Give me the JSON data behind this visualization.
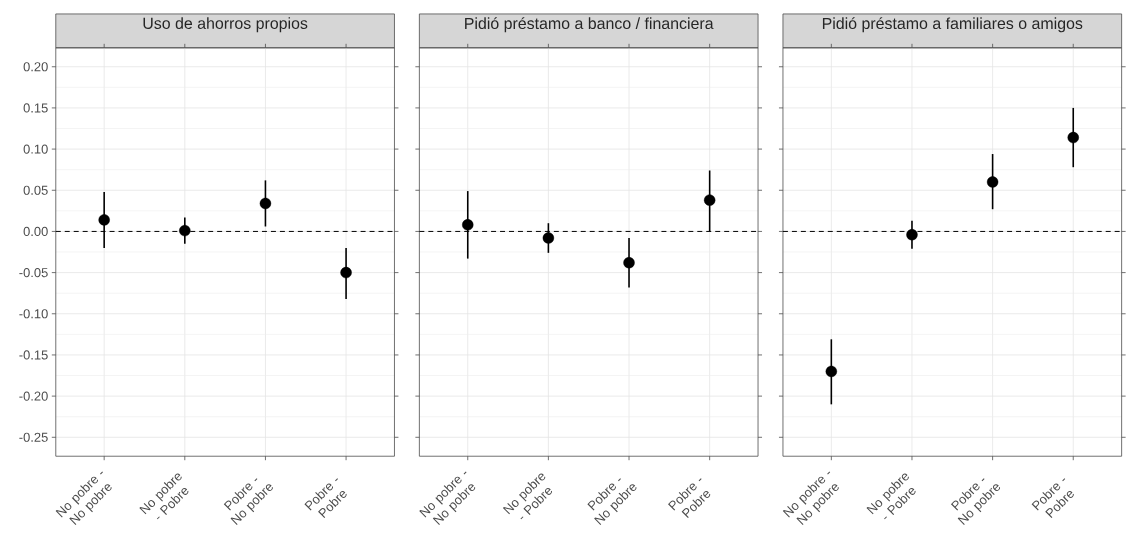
{
  "chart_data": [
    {
      "type": "scatter",
      "title": "Uso de ahorros propios",
      "categories": [
        "No pobre - No pobre",
        "No pobre - Pobre",
        "Pobre - No pobre",
        "Pobre - Pobre"
      ],
      "values": [
        0.014,
        0.001,
        0.034,
        -0.05
      ],
      "errors": [
        [
          -0.02,
          0.048
        ],
        [
          -0.015,
          0.017
        ],
        [
          0.006,
          0.062
        ],
        [
          -0.082,
          -0.02
        ]
      ],
      "color": "#000000",
      "marker": "circle",
      "ylim": [
        -0.273,
        0.223
      ],
      "yticks": [
        {
          "value": -0.25,
          "label": "-0.25"
        },
        {
          "value": -0.2,
          "label": "-0.20"
        },
        {
          "value": -0.15,
          "label": "-0.15"
        },
        {
          "value": -0.1,
          "label": "-0.10"
        },
        {
          "value": -0.05,
          "label": "-0.05"
        },
        {
          "value": 0,
          "label": "0.00"
        },
        {
          "value": 0.05,
          "label": "0.05"
        },
        {
          "value": 0.1,
          "label": "0.10"
        },
        {
          "value": 0.15,
          "label": "0.15"
        },
        {
          "value": 0.2,
          "label": "0.20"
        }
      ],
      "grid": true,
      "ref_lines": [
        {
          "axis": "y",
          "value": 0,
          "line_style": "dashed",
          "color": "#000000"
        }
      ]
    },
    {
      "type": "scatter",
      "title": "Pidió préstamo a banco / financiera",
      "categories": [
        "No pobre - No pobre",
        "No pobre - Pobre",
        "Pobre - No pobre",
        "Pobre - Pobre"
      ],
      "values": [
        0.008,
        -0.008,
        -0.038,
        0.038
      ],
      "errors": [
        [
          -0.033,
          0.049
        ],
        [
          -0.026,
          0.01
        ],
        [
          -0.068,
          -0.008
        ],
        [
          0.0,
          0.074
        ]
      ],
      "color": "#000000",
      "marker": "circle",
      "ylim": [
        -0.273,
        0.223
      ],
      "yticks": [
        {
          "value": -0.25,
          "label": null
        },
        {
          "value": -0.2,
          "label": null
        },
        {
          "value": -0.15,
          "label": null
        },
        {
          "value": -0.1,
          "label": null
        },
        {
          "value": -0.05,
          "label": null
        },
        {
          "value": 0,
          "label": null
        },
        {
          "value": 0.05,
          "label": null
        },
        {
          "value": 0.1,
          "label": null
        },
        {
          "value": 0.15,
          "label": null
        },
        {
          "value": 0.2,
          "label": null
        }
      ],
      "tick_labels": "x",
      "grid": true,
      "ref_lines": [
        {
          "axis": "y",
          "value": 0,
          "line_style": "dashed",
          "color": "#000000"
        }
      ]
    },
    {
      "type": "scatter",
      "title": "Pidió préstamo a familiares o amigos",
      "categories": [
        "No pobre - No pobre",
        "No pobre - Pobre",
        "Pobre - No pobre",
        "Pobre - Pobre"
      ],
      "values": [
        -0.17,
        -0.004,
        0.06,
        0.114
      ],
      "errors": [
        [
          -0.21,
          -0.131
        ],
        [
          -0.021,
          0.013
        ],
        [
          0.027,
          0.094
        ],
        [
          0.078,
          0.15
        ]
      ],
      "color": "#000000",
      "marker": "circle",
      "ylim": [
        -0.273,
        0.223
      ],
      "yticks": [
        {
          "value": -0.25,
          "label": null
        },
        {
          "value": -0.2,
          "label": null
        },
        {
          "value": -0.15,
          "label": null
        },
        {
          "value": -0.1,
          "label": null
        },
        {
          "value": -0.05,
          "label": null
        },
        {
          "value": 0,
          "label": null
        },
        {
          "value": 0.05,
          "label": null
        },
        {
          "value": 0.1,
          "label": null
        },
        {
          "value": 0.15,
          "label": null
        },
        {
          "value": 0.2,
          "label": null
        }
      ],
      "tick_labels": "x",
      "grid": true,
      "ref_lines": [
        {
          "axis": "y",
          "value": 0,
          "line_style": "dashed",
          "color": "#000000"
        }
      ]
    }
  ]
}
